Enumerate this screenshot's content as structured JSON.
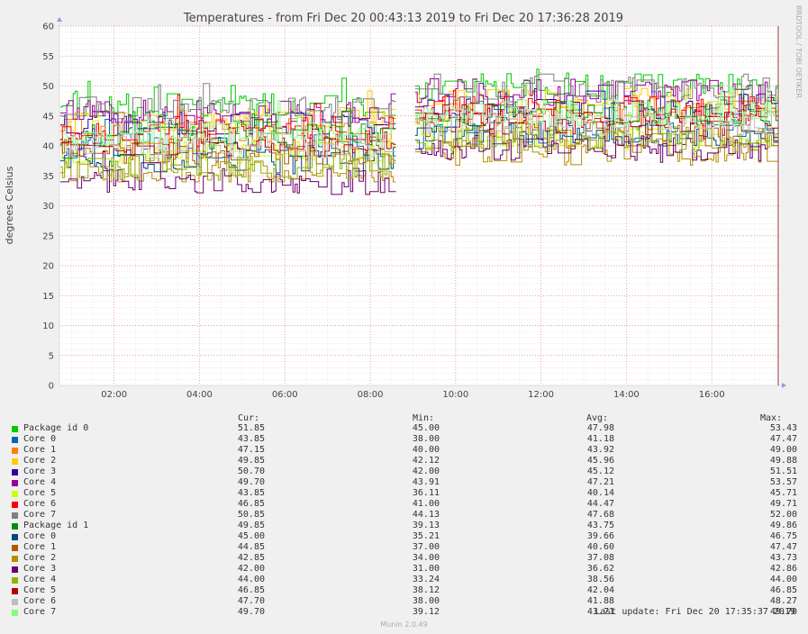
{
  "chart_data": {
    "type": "line",
    "title": "Temperatures - from Fri Dec 20 00:43:13 2019 to Fri Dec 20 17:36:28 2019",
    "ylabel": "degrees Celsius",
    "xlabel": "",
    "ylim": [
      0,
      60
    ],
    "yticks": [
      0,
      5,
      10,
      15,
      20,
      25,
      30,
      35,
      40,
      45,
      50,
      55,
      60
    ],
    "xlim_hours": [
      0.72,
      17.6
    ],
    "xticks": [
      {
        "h": 2,
        "label": "02:00"
      },
      {
        "h": 4,
        "label": "04:00"
      },
      {
        "h": 6,
        "label": "06:00"
      },
      {
        "h": 8,
        "label": "08:00"
      },
      {
        "h": 10,
        "label": "10:00"
      },
      {
        "h": 12,
        "label": "12:00"
      },
      {
        "h": 14,
        "label": "14:00"
      },
      {
        "h": 16,
        "label": "16:00"
      }
    ],
    "gap_hours": [
      8.55,
      9.05
    ],
    "grid": true,
    "series": [
      {
        "name": "Package id 0",
        "color": "#00cc00",
        "cur": "51.85",
        "min": "45.00",
        "avg": "47.98",
        "max": "53.43",
        "base1": 46.5,
        "base2": 50.0
      },
      {
        "name": "Core 0",
        "color": "#0066b3",
        "cur": "43.85",
        "min": "38.00",
        "avg": "41.18",
        "max": "47.47",
        "base1": 40.0,
        "base2": 42.5
      },
      {
        "name": "Core 1",
        "color": "#ff8000",
        "cur": "47.15",
        "min": "40.00",
        "avg": "43.92",
        "max": "49.00",
        "base1": 42.5,
        "base2": 45.5
      },
      {
        "name": "Core 2",
        "color": "#ffcc00",
        "cur": "49.85",
        "min": "42.12",
        "avg": "45.96",
        "max": "49.88",
        "base1": 44.5,
        "base2": 47.5
      },
      {
        "name": "Core 3",
        "color": "#330099",
        "cur": "50.70",
        "min": "42.00",
        "avg": "45.12",
        "max": "51.51",
        "base1": 43.5,
        "base2": 46.5
      },
      {
        "name": "Core 4",
        "color": "#990099",
        "cur": "49.70",
        "min": "43.91",
        "avg": "47.21",
        "max": "53.57",
        "base1": 45.5,
        "base2": 49.0
      },
      {
        "name": "Core 5",
        "color": "#ccff00",
        "cur": "43.85",
        "min": "36.11",
        "avg": "40.14",
        "max": "45.71",
        "base1": 39.0,
        "base2": 41.5
      },
      {
        "name": "Core 6",
        "color": "#ff0000",
        "cur": "46.85",
        "min": "41.00",
        "avg": "44.47",
        "max": "49.71",
        "base1": 43.0,
        "base2": 46.0
      },
      {
        "name": "Core 7",
        "color": "#808080",
        "cur": "50.85",
        "min": "44.13",
        "avg": "47.68",
        "max": "52.00",
        "base1": 46.0,
        "base2": 49.5
      },
      {
        "name": "Package id 1",
        "color": "#008f00",
        "cur": "49.85",
        "min": "39.13",
        "avg": "43.75",
        "max": "49.86",
        "base1": 42.0,
        "base2": 45.5
      },
      {
        "name": "Core 0",
        "color": "#00487d",
        "cur": "45.00",
        "min": "35.21",
        "avg": "39.66",
        "max": "46.75",
        "base1": 37.5,
        "base2": 42.0
      },
      {
        "name": "Core 1",
        "color": "#b35a00",
        "cur": "44.85",
        "min": "37.00",
        "avg": "40.60",
        "max": "47.47",
        "base1": 39.0,
        "base2": 42.0
      },
      {
        "name": "Core 2",
        "color": "#b38f00",
        "cur": "42.85",
        "min": "34.00",
        "avg": "37.08",
        "max": "43.73",
        "base1": 35.5,
        "base2": 39.0
      },
      {
        "name": "Core 3",
        "color": "#6b006b",
        "cur": "42.00",
        "min": "31.00",
        "avg": "36.62",
        "max": "42.86",
        "base1": 34.0,
        "base2": 39.5
      },
      {
        "name": "Core 4",
        "color": "#8fb300",
        "cur": "44.00",
        "min": "33.24",
        "avg": "38.56",
        "max": "44.00",
        "base1": 36.5,
        "base2": 41.0
      },
      {
        "name": "Core 5",
        "color": "#b30000",
        "cur": "46.85",
        "min": "38.12",
        "avg": "42.04",
        "max": "46.85",
        "base1": 40.5,
        "base2": 44.0
      },
      {
        "name": "Core 6",
        "color": "#bebebe",
        "cur": "47.70",
        "min": "38.00",
        "avg": "41.88",
        "max": "48.27",
        "base1": 40.0,
        "base2": 44.0
      },
      {
        "name": "Core 7",
        "color": "#80ff80",
        "cur": "49.70",
        "min": "39.12",
        "avg": "43.71",
        "max": "49.70",
        "base1": 42.0,
        "base2": 45.5
      }
    ]
  },
  "legend": {
    "cur_label": "Cur:",
    "min_label": "Min:",
    "avg_label": "Avg:",
    "max_label": "Max:"
  },
  "footer": {
    "last_update": "Last update: Fri Dec 20 17:35:37 2019",
    "munin": "Munin 2.0.49",
    "side_text": "RRDTOOL / TOBI OETIKER"
  }
}
